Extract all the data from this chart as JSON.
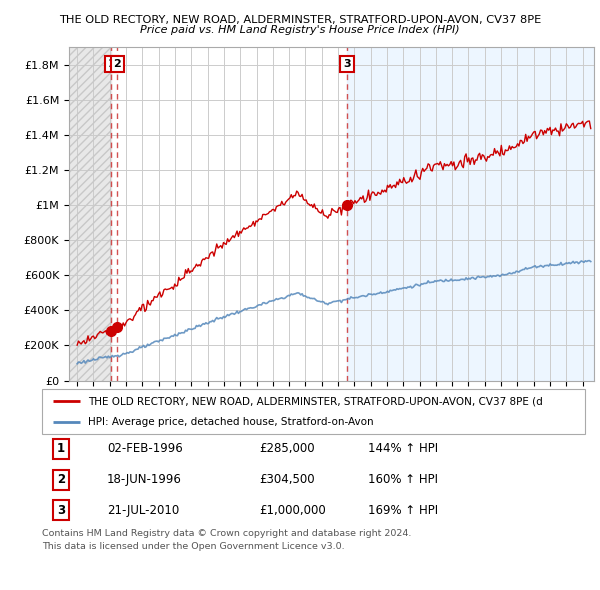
{
  "title1": "THE OLD RECTORY, NEW ROAD, ALDERMINSTER, STRATFORD-UPON-AVON, CV37 8PE",
  "title2": "Price paid vs. HM Land Registry's House Price Index (HPI)",
  "ylim": [
    0,
    1900000
  ],
  "yticks": [
    0,
    200000,
    400000,
    600000,
    800000,
    1000000,
    1200000,
    1400000,
    1600000,
    1800000
  ],
  "ytick_labels": [
    "£0",
    "£200K",
    "£400K",
    "£600K",
    "£800K",
    "£1M",
    "£1.2M",
    "£1.4M",
    "£1.6M",
    "£1.8M"
  ],
  "xlim_start": 1993.5,
  "xlim_end": 2025.7,
  "transactions": [
    {
      "num": 1,
      "date": "02-FEB-1996",
      "year": 1996.09,
      "price": 285000,
      "hpi_pct": "144%"
    },
    {
      "num": 2,
      "date": "18-JUN-1996",
      "year": 1996.46,
      "price": 304500,
      "hpi_pct": "160%"
    },
    {
      "num": 3,
      "date": "21-JUL-2010",
      "year": 2010.55,
      "price": 1000000,
      "hpi_pct": "169%"
    }
  ],
  "legend_line1": "THE OLD RECTORY, NEW ROAD, ALDERMINSTER, STRATFORD-UPON-AVON, CV37 8PE (d",
  "legend_line2": "HPI: Average price, detached house, Stratford-on-Avon",
  "footnote1": "Contains HM Land Registry data © Crown copyright and database right 2024.",
  "footnote2": "This data is licensed under the Open Government Licence v3.0.",
  "line_color_red": "#cc0000",
  "line_color_blue": "#5588bb",
  "dashed_color": "#cc3333",
  "grid_color": "#cccccc",
  "bg_color": "#ffffff",
  "hatch_area_color": "#e0e0e0",
  "post_sale3_bg": "#ddeeff"
}
